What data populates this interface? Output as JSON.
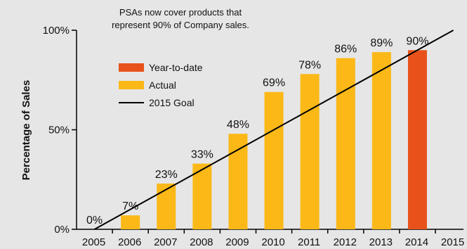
{
  "chart_data": {
    "type": "bar",
    "title_lines": [
      "PSAs now cover products that",
      "represent 90% of Company sales."
    ],
    "ylabel": "Percentage of Sales",
    "ylim": [
      0,
      100
    ],
    "y_ticks": [
      0,
      50,
      100
    ],
    "y_tick_labels": [
      "0%",
      "50%",
      "100%"
    ],
    "categories": [
      "2005",
      "2006",
      "2007",
      "2008",
      "2009",
      "2010",
      "2011",
      "2012",
      "2013",
      "2014",
      "2015"
    ],
    "series": [
      {
        "name": "Actual",
        "color": "#fbb817",
        "values": [
          0,
          7,
          23,
          33,
          48,
          69,
          78,
          86,
          89,
          null,
          null
        ],
        "labels": [
          "0%",
          "7%",
          "23%",
          "33%",
          "48%",
          "69%",
          "78%",
          "86%",
          "89%",
          "",
          ""
        ]
      },
      {
        "name": "Year-to-date",
        "color": "#e8521a",
        "values": [
          null,
          null,
          null,
          null,
          null,
          null,
          null,
          null,
          null,
          90,
          null
        ],
        "labels": [
          "",
          "",
          "",
          "",
          "",
          "",
          "",
          "",
          "",
          "90%",
          ""
        ]
      }
    ],
    "goal_line": {
      "name": "2015 Goal",
      "color": "#000000",
      "x": [
        "2005",
        "2015"
      ],
      "y": [
        0,
        100
      ]
    },
    "legend": [
      "Year-to-date",
      "Actual",
      "2015 Goal"
    ],
    "legend_position": "top-left",
    "grid": false
  }
}
